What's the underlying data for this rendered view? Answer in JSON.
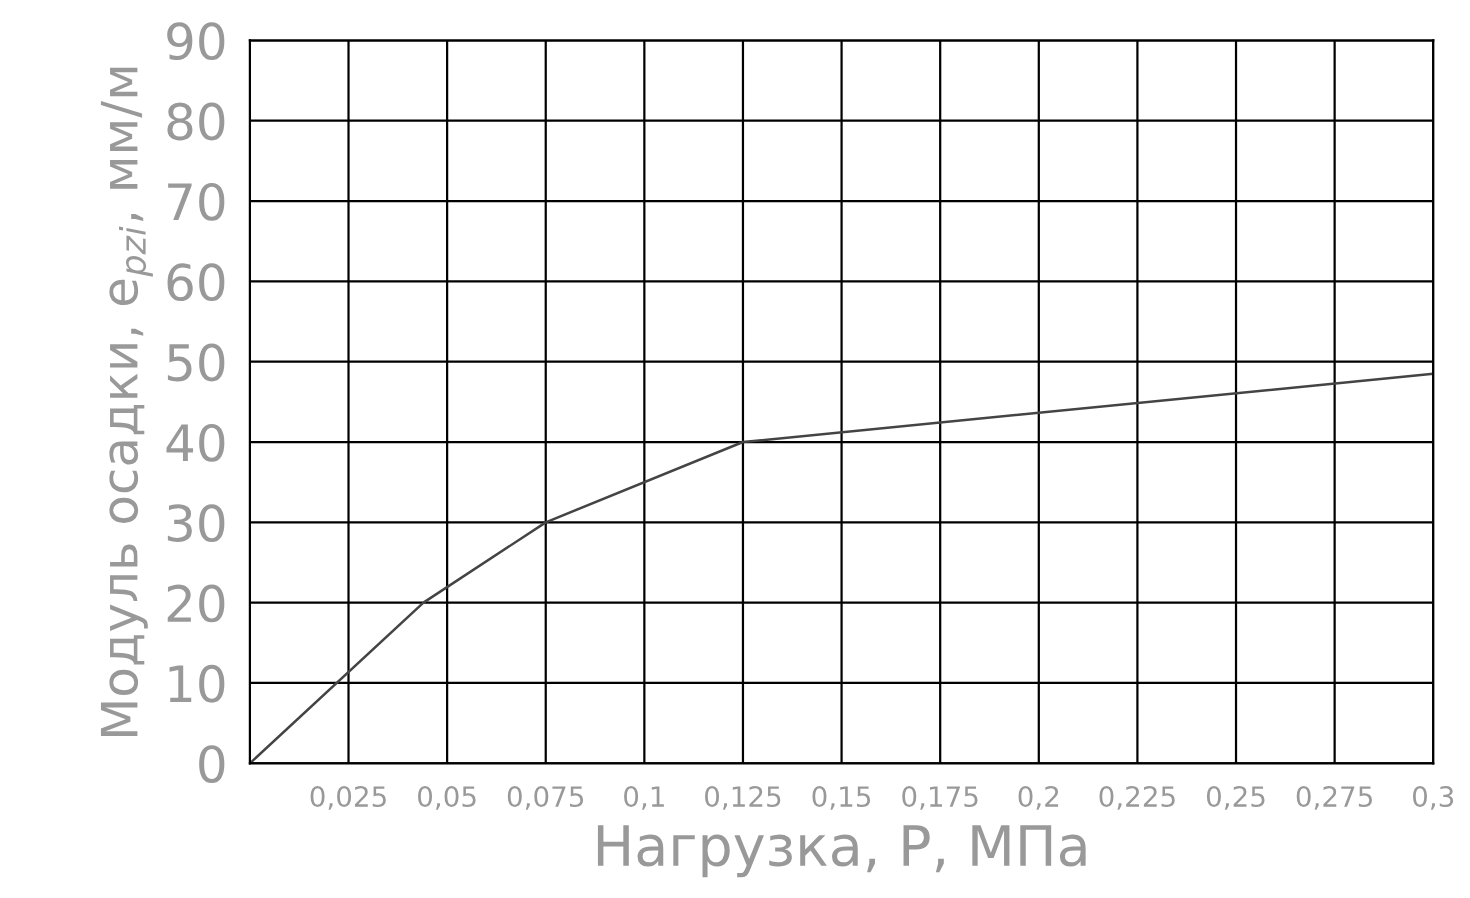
{
  "chart_data": {
    "type": "line",
    "xlabel": "Нагрузка, P, МПа",
    "ylabel": "Модуль осадки, e$_{pzi}$, мм/м",
    "x": [
      0,
      0.044,
      0.075,
      0.125,
      0.3
    ],
    "series": [
      {
        "color": "#444444",
        "values": [
          0,
          20,
          30,
          40,
          48.5
        ]
      }
    ],
    "xlim": [
      0,
      0.3
    ],
    "xticks": [
      {
        "value": 0.025,
        "label": "0,025"
      },
      {
        "value": 0.05,
        "label": "0,05"
      },
      {
        "value": 0.075,
        "label": "0,075"
      },
      {
        "value": 0.1,
        "label": "0,1"
      },
      {
        "value": 0.125,
        "label": "0,125"
      },
      {
        "value": 0.15,
        "label": "0,15"
      },
      {
        "value": 0.175,
        "label": "0,175"
      },
      {
        "value": 0.2,
        "label": "0,2"
      },
      {
        "value": 0.225,
        "label": "0,225"
      },
      {
        "value": 0.25,
        "label": "0,25"
      },
      {
        "value": 0.275,
        "label": "0,275"
      },
      {
        "value": 0.3,
        "label": "0,3"
      }
    ],
    "ylim": [
      0,
      90
    ],
    "yticks": [
      0,
      10,
      20,
      30,
      40,
      50,
      60,
      70,
      80,
      90
    ],
    "grid": true,
    "marker": "none",
    "line_style": "solid"
  }
}
